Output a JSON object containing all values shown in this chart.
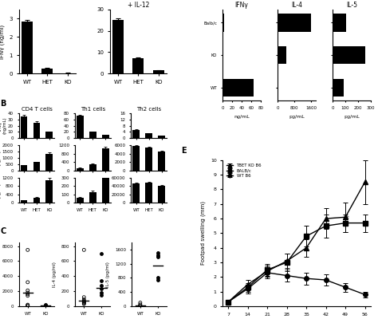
{
  "panel_A": {
    "title1": "",
    "title2": "+ IL-12",
    "ylabel": "IFNγ (ng/ml)",
    "categories": [
      "WT",
      "HET",
      "KO"
    ],
    "values1": [
      2.85,
      0.25,
      0.02
    ],
    "errors1": [
      0.1,
      0.05,
      0.01
    ],
    "values2": [
      25.0,
      7.0,
      1.5
    ],
    "errors2": [
      0.8,
      0.5,
      0.2
    ]
  },
  "panel_B": {
    "categories": [
      "WT",
      "HET",
      "KO"
    ],
    "cd4_ifng": [
      35,
      25,
      10
    ],
    "cd4_ifng_err": [
      2,
      2,
      1
    ],
    "cd4_il4": [
      400,
      650,
      1350
    ],
    "cd4_il4_err": [
      30,
      50,
      100
    ],
    "cd4_il5": [
      100,
      250,
      1100
    ],
    "cd4_il5_err": [
      20,
      30,
      80
    ],
    "th1_ifng": [
      72,
      20,
      10
    ],
    "th1_ifng_err": [
      3,
      2,
      1
    ],
    "th1_il4": [
      100,
      300,
      1050
    ],
    "th1_il4_err": [
      20,
      30,
      80
    ],
    "th1_il5": [
      60,
      130,
      300
    ],
    "th1_il5_err": [
      10,
      15,
      30
    ],
    "th2_ifng": [
      5,
      3,
      1.5
    ],
    "th2_ifng_err": [
      0.5,
      0.3,
      0.2
    ],
    "th2_il4": [
      5800,
      5500,
      4500
    ],
    "th2_il4_err": [
      200,
      200,
      200
    ],
    "th2_il5": [
      46000,
      48000,
      40000
    ],
    "th2_il5_err": [
      2000,
      2000,
      2000
    ]
  },
  "panel_C": {
    "wt_ifng": [
      7500,
      3200,
      2100,
      1800,
      1600,
      1400,
      200,
      100,
      50
    ],
    "ko_ifng": [
      200,
      100
    ],
    "wt_il4": [
      750,
      120,
      90,
      70,
      60,
      50,
      40,
      30
    ],
    "ko_il4": [
      700,
      340,
      280,
      230,
      180,
      150
    ],
    "wt_il5": [
      100,
      50,
      20,
      10
    ],
    "ko_il5": [
      1500,
      1450,
      1400,
      800,
      750
    ],
    "wt_ifng_median": 1800,
    "ko_ifng_median": 150,
    "wt_il4_median": 70,
    "ko_il4_median": 240,
    "wt_il5_median": 30,
    "ko_il5_median": 1150
  },
  "panel_D": {
    "categories": [
      "WT",
      "KO",
      "Balb/c"
    ],
    "ifng": [
      65,
      0,
      3
    ],
    "il4": [
      0,
      400,
      1600
    ],
    "il5": [
      90,
      260,
      110
    ]
  },
  "panel_E": {
    "days": [
      7,
      14,
      21,
      28,
      35,
      42,
      49,
      56
    ],
    "tbet_ko": [
      0.3,
      1.5,
      2.4,
      3.1,
      4.0,
      6.0,
      6.1,
      8.5
    ],
    "tbet_ko_err": [
      0.1,
      0.3,
      0.4,
      0.5,
      0.6,
      0.7,
      1.0,
      1.5
    ],
    "balbc": [
      0.3,
      1.3,
      2.5,
      3.0,
      4.8,
      5.5,
      5.7,
      5.7
    ],
    "balbc_err": [
      0.1,
      0.3,
      0.4,
      0.6,
      0.7,
      0.8,
      0.6,
      0.6
    ],
    "wt_b6": [
      0.3,
      1.2,
      2.3,
      2.1,
      1.9,
      1.8,
      1.3,
      0.8
    ],
    "wt_b6_err": [
      0.1,
      0.3,
      0.4,
      0.4,
      0.4,
      0.4,
      0.3,
      0.2
    ]
  }
}
